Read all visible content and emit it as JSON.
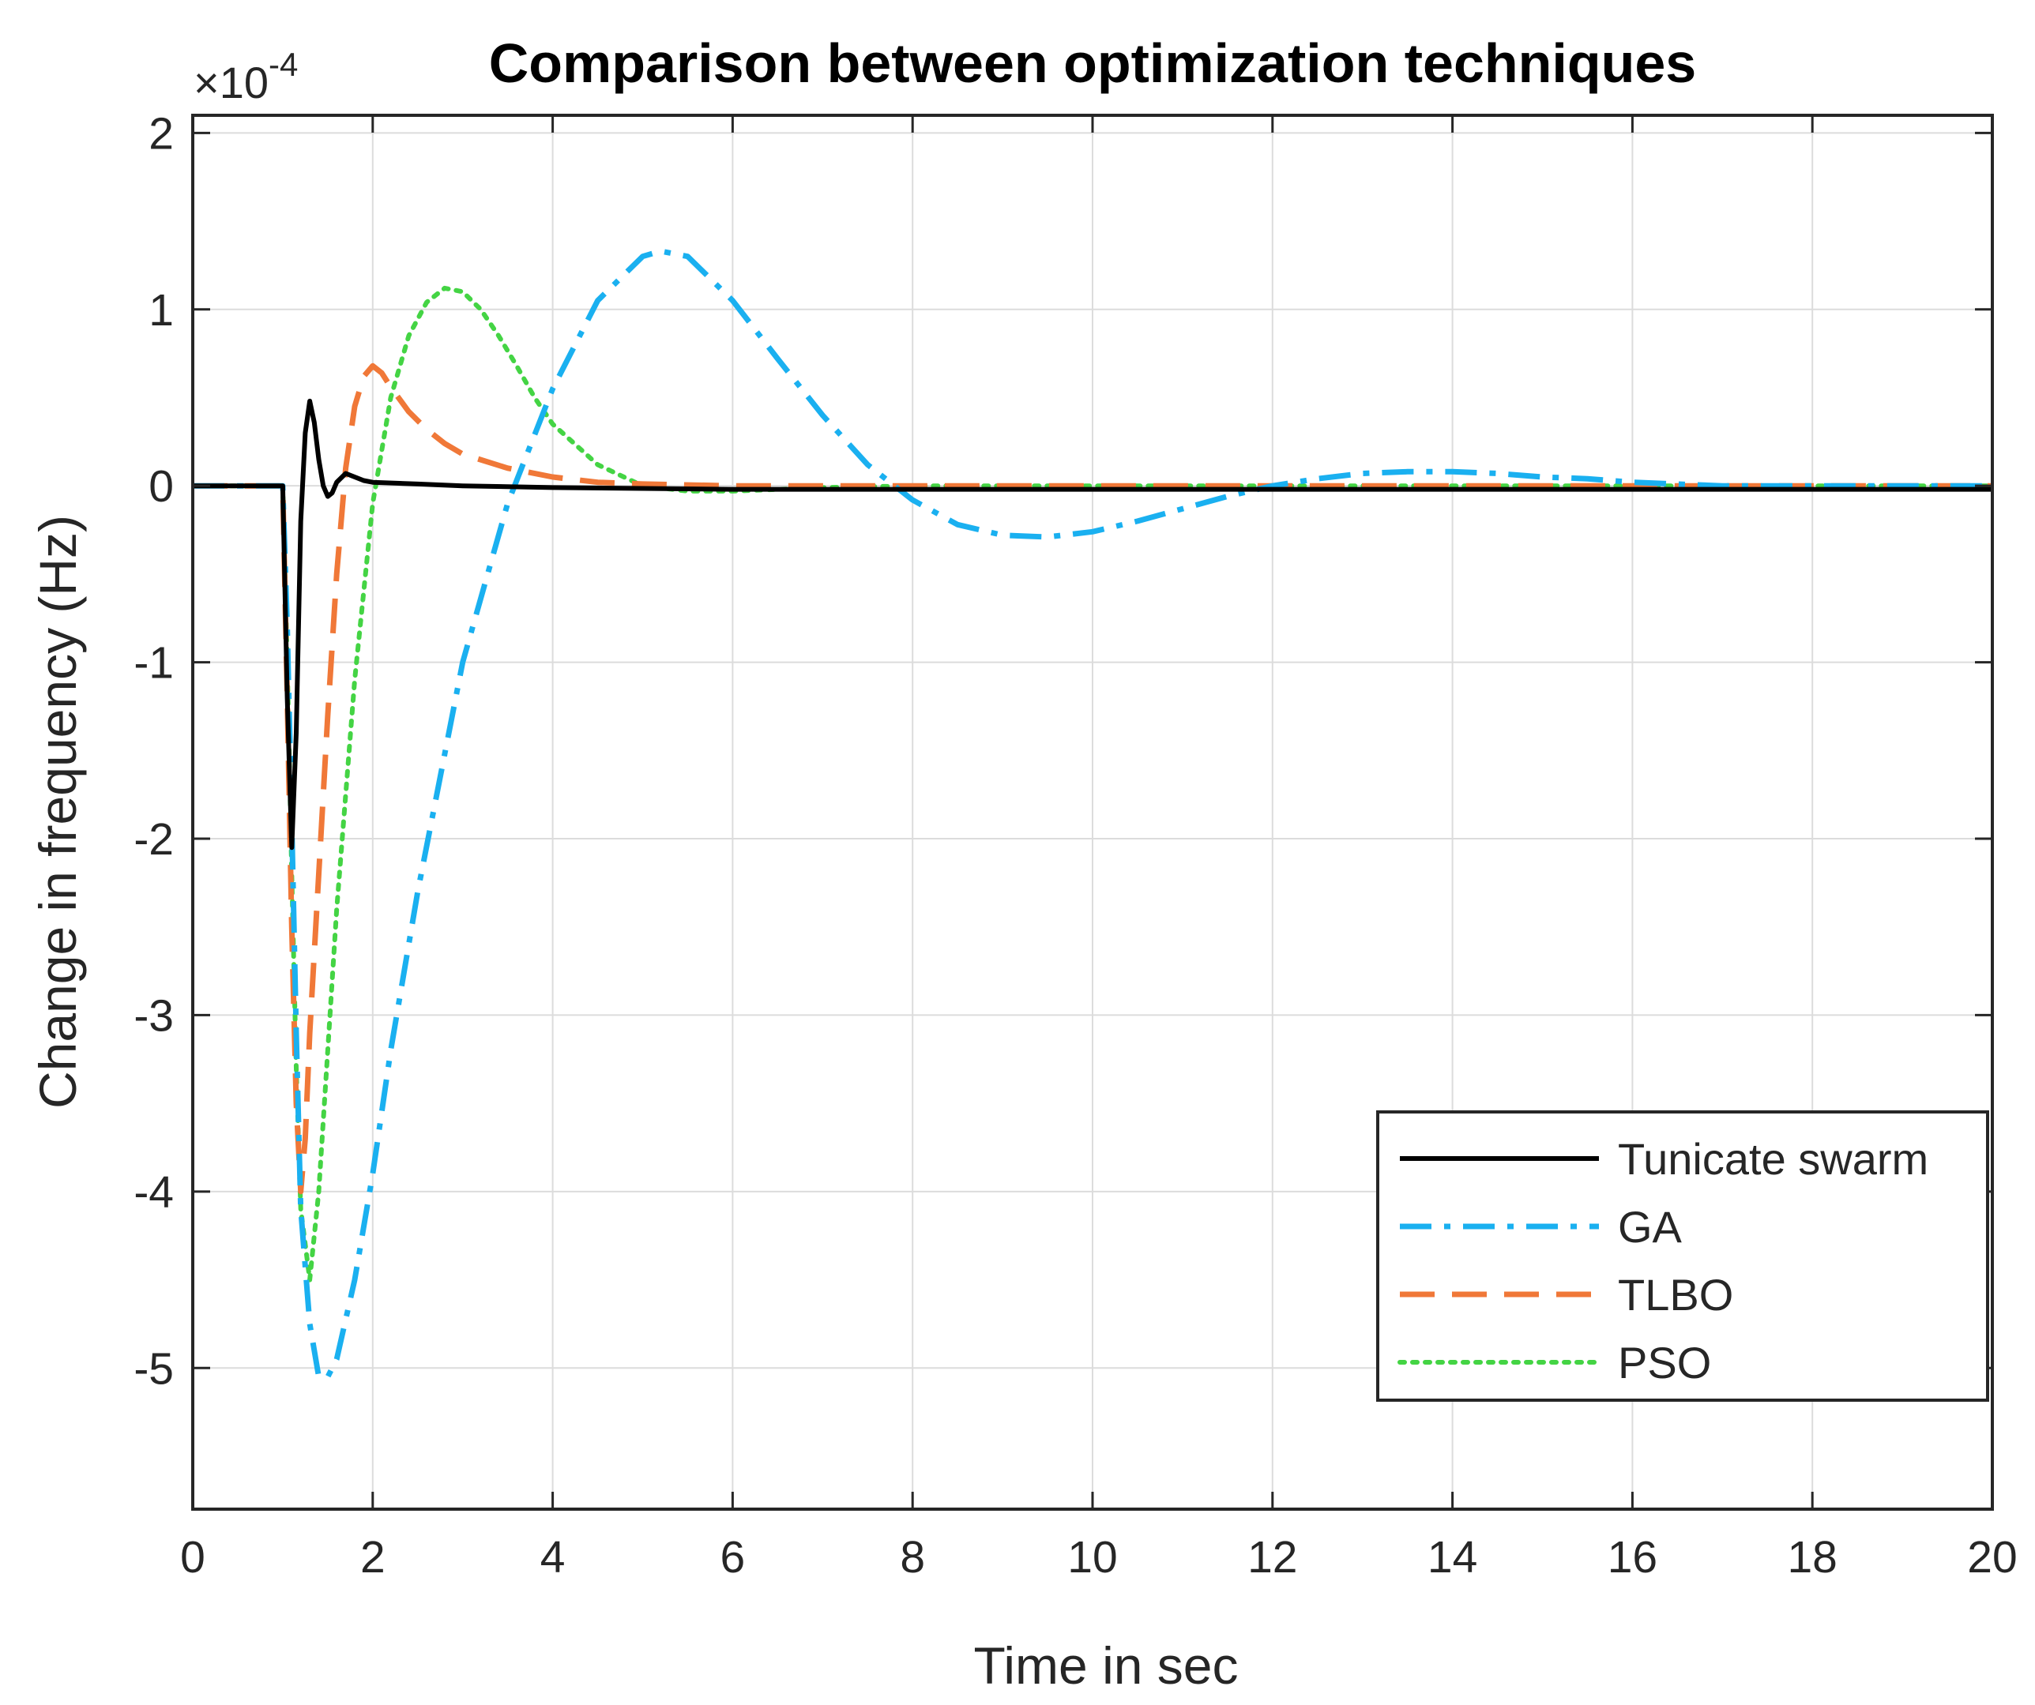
{
  "chart_data": {
    "type": "line",
    "title": "Comparison between optimization techniques",
    "xlabel": "Time in sec",
    "ylabel": "Change in frequency (Hz)",
    "y_exponent_prefix": "×10",
    "y_exponent_power": "-4",
    "xlim": [
      0,
      20
    ],
    "ylim": [
      -5.8,
      2.1
    ],
    "x_ticks": [
      0,
      2,
      4,
      6,
      8,
      10,
      12,
      14,
      16,
      18,
      20
    ],
    "x_tick_labels": [
      "0",
      "2",
      "4",
      "6",
      "8",
      "10",
      "12",
      "14",
      "16",
      "18",
      "20"
    ],
    "y_ticks": [
      2,
      1,
      0,
      -1,
      -2,
      -3,
      -4,
      -5
    ],
    "y_tick_labels": [
      "2",
      "1",
      "0",
      "-1",
      "-2",
      "-3",
      "-4",
      "-5"
    ],
    "grid": true,
    "legend_position": "bottom-right",
    "series": [
      {
        "name": "Tunicate swarm",
        "color": "#000000",
        "style": "solid",
        "x": [
          0,
          1.0,
          1.05,
          1.1,
          1.15,
          1.2,
          1.25,
          1.3,
          1.35,
          1.4,
          1.45,
          1.5,
          1.55,
          1.6,
          1.7,
          1.8,
          1.9,
          2.0,
          2.5,
          3.0,
          4.0,
          6.0,
          10.0,
          14.0,
          20.0
        ],
        "y": [
          0,
          0,
          -1.2,
          -2.05,
          -1.4,
          -0.2,
          0.3,
          0.48,
          0.36,
          0.15,
          0.0,
          -0.06,
          -0.04,
          0.02,
          0.07,
          0.05,
          0.03,
          0.02,
          0.01,
          0.0,
          -0.01,
          -0.02,
          -0.02,
          -0.02,
          -0.02
        ]
      },
      {
        "name": "GA",
        "color": "#1ab0f0",
        "style": "dashdot",
        "x": [
          0,
          1.0,
          1.05,
          1.1,
          1.15,
          1.2,
          1.3,
          1.4,
          1.5,
          1.6,
          1.8,
          2.0,
          2.2,
          2.5,
          3.0,
          3.5,
          4.0,
          4.5,
          5.0,
          5.2,
          5.5,
          6.0,
          6.5,
          7.0,
          7.5,
          8.0,
          8.5,
          9.0,
          9.5,
          10.0,
          10.5,
          11.0,
          11.5,
          12.0,
          12.5,
          13.0,
          13.5,
          14.0,
          14.5,
          15.0,
          15.5,
          16.0,
          17.0,
          18.0,
          20.0
        ],
        "y": [
          0,
          0,
          -0.8,
          -1.9,
          -3.1,
          -4.1,
          -4.75,
          -5.05,
          -5.05,
          -4.95,
          -4.5,
          -3.9,
          -3.2,
          -2.3,
          -1.0,
          -0.1,
          0.55,
          1.05,
          1.3,
          1.33,
          1.3,
          1.05,
          0.72,
          0.4,
          0.12,
          -0.08,
          -0.22,
          -0.28,
          -0.29,
          -0.26,
          -0.2,
          -0.13,
          -0.06,
          0.0,
          0.04,
          0.07,
          0.08,
          0.08,
          0.07,
          0.05,
          0.04,
          0.02,
          0.0,
          0.0,
          0.0
        ]
      },
      {
        "name": "TLBO",
        "color": "#f07838",
        "style": "dash",
        "x": [
          0,
          1.0,
          1.05,
          1.1,
          1.15,
          1.2,
          1.25,
          1.3,
          1.4,
          1.5,
          1.6,
          1.7,
          1.8,
          1.9,
          2.0,
          2.1,
          2.2,
          2.4,
          2.6,
          2.8,
          3.0,
          3.5,
          4.0,
          4.5,
          5.0,
          6.0,
          8.0,
          12.0,
          16.0,
          20.0
        ],
        "y": [
          0,
          0,
          -1.2,
          -2.5,
          -3.5,
          -4.0,
          -3.7,
          -3.1,
          -2.2,
          -1.3,
          -0.5,
          0.1,
          0.45,
          0.62,
          0.68,
          0.64,
          0.56,
          0.42,
          0.32,
          0.24,
          0.18,
          0.1,
          0.05,
          0.02,
          0.01,
          0.0,
          0.0,
          0.0,
          0.0,
          0.0
        ]
      },
      {
        "name": "PSO",
        "color": "#44d444",
        "style": "dot",
        "x": [
          0,
          1.0,
          1.05,
          1.1,
          1.15,
          1.2,
          1.3,
          1.4,
          1.5,
          1.6,
          1.8,
          2.0,
          2.2,
          2.4,
          2.6,
          2.8,
          3.0,
          3.2,
          3.4,
          3.6,
          3.8,
          4.0,
          4.5,
          5.0,
          5.5,
          6.0,
          7.0,
          8.0,
          12.0,
          16.0,
          20.0
        ],
        "y": [
          0,
          0,
          -1.0,
          -2.2,
          -3.3,
          -4.1,
          -4.5,
          -4.0,
          -3.2,
          -2.4,
          -1.1,
          -0.1,
          0.5,
          0.85,
          1.04,
          1.12,
          1.1,
          1.0,
          0.85,
          0.68,
          0.5,
          0.35,
          0.12,
          0.0,
          -0.03,
          -0.03,
          -0.01,
          0.0,
          0.0,
          0.0,
          0.0
        ]
      }
    ]
  }
}
